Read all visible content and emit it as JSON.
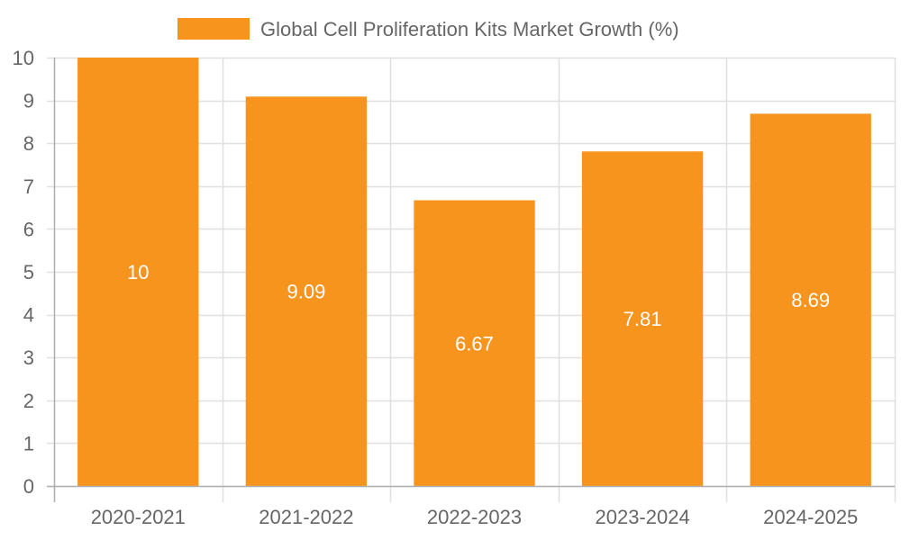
{
  "chart_data": {
    "type": "bar",
    "title": "",
    "legend": {
      "entries": [
        "Global Cell Proliferation Kits Market Growth (%)"
      ],
      "placement": "top-center"
    },
    "categories": [
      "2020-2021",
      "2021-2022",
      "2022-2023",
      "2023-2024",
      "2024-2025"
    ],
    "series": [
      {
        "name": "Global Cell Proliferation Kits Market Growth (%)",
        "values": [
          10,
          9.09,
          6.67,
          7.81,
          8.69
        ],
        "data_labels": [
          "10",
          "9.09",
          "6.67",
          "7.81",
          "8.69"
        ],
        "color": "#F7941E"
      }
    ],
    "xlabel": "",
    "ylabel": "",
    "ylim": [
      0,
      10
    ],
    "yticks": [
      0,
      1,
      2,
      3,
      4,
      5,
      6,
      7,
      8,
      9,
      10
    ],
    "grid": true
  },
  "colors": {
    "bar": "#F7941E",
    "grid": "#e0e0e0",
    "axis": "#b0b0b0",
    "text": "#666666",
    "data_label": "#ffffff"
  }
}
